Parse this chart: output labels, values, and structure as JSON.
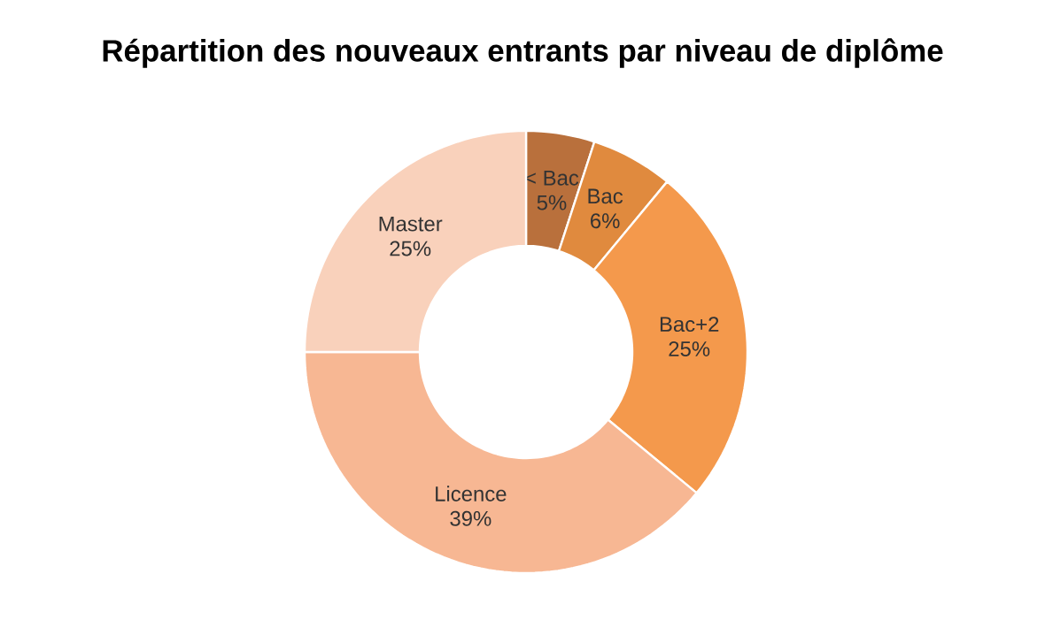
{
  "chart_data": {
    "type": "donut",
    "title": "Répartition des nouveaux entrants par niveau de diplôme",
    "categories": [
      "< Bac",
      "Bac",
      "Bac+2",
      "Licence",
      "Master"
    ],
    "values": [
      5,
      6,
      25,
      39,
      25
    ],
    "value_labels": [
      "5%",
      "6%",
      "25%",
      "39%",
      "25%"
    ],
    "colors": [
      "#b9703c",
      "#e08a3e",
      "#f4994c",
      "#f7b793",
      "#f9d1bb"
    ]
  }
}
